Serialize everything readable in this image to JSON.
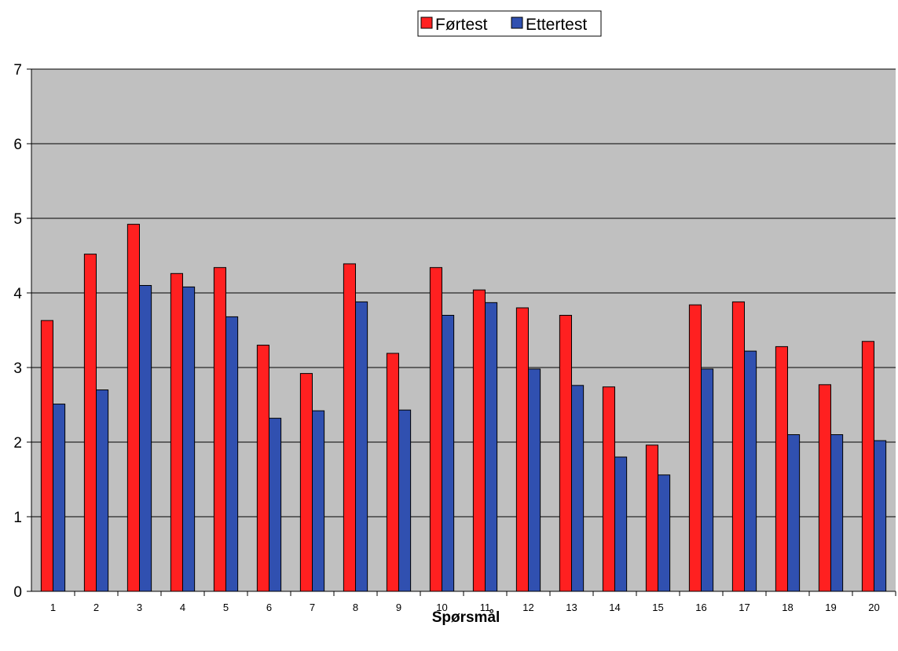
{
  "chart_data": {
    "type": "bar",
    "title": "",
    "xlabel": "Spørsmål",
    "ylabel": "",
    "ylim": [
      0,
      7
    ],
    "yticks": [
      0,
      1,
      2,
      3,
      4,
      5,
      6,
      7
    ],
    "grid": true,
    "legend_position": "top-center",
    "plot_background": "#c0c0c0",
    "categories": [
      "1",
      "2",
      "3",
      "4",
      "5",
      "6",
      "7",
      "8",
      "9",
      "10",
      "11",
      "12",
      "13",
      "14",
      "15",
      "16",
      "17",
      "18",
      "19",
      "20"
    ],
    "series": [
      {
        "name": "Førtest",
        "color": "#ff2020",
        "values": [
          3.63,
          4.52,
          4.92,
          4.26,
          4.34,
          3.3,
          2.92,
          4.39,
          3.19,
          4.34,
          4.04,
          3.8,
          3.7,
          2.74,
          1.96,
          3.84,
          3.88,
          3.28,
          2.77,
          3.35
        ]
      },
      {
        "name": "Ettertest",
        "color": "#3050b0",
        "values": [
          2.51,
          2.7,
          4.1,
          4.08,
          3.68,
          2.32,
          2.42,
          3.88,
          2.43,
          3.7,
          3.87,
          2.98,
          2.76,
          1.8,
          1.56,
          2.98,
          3.22,
          2.1,
          2.1,
          2.02
        ]
      }
    ]
  }
}
